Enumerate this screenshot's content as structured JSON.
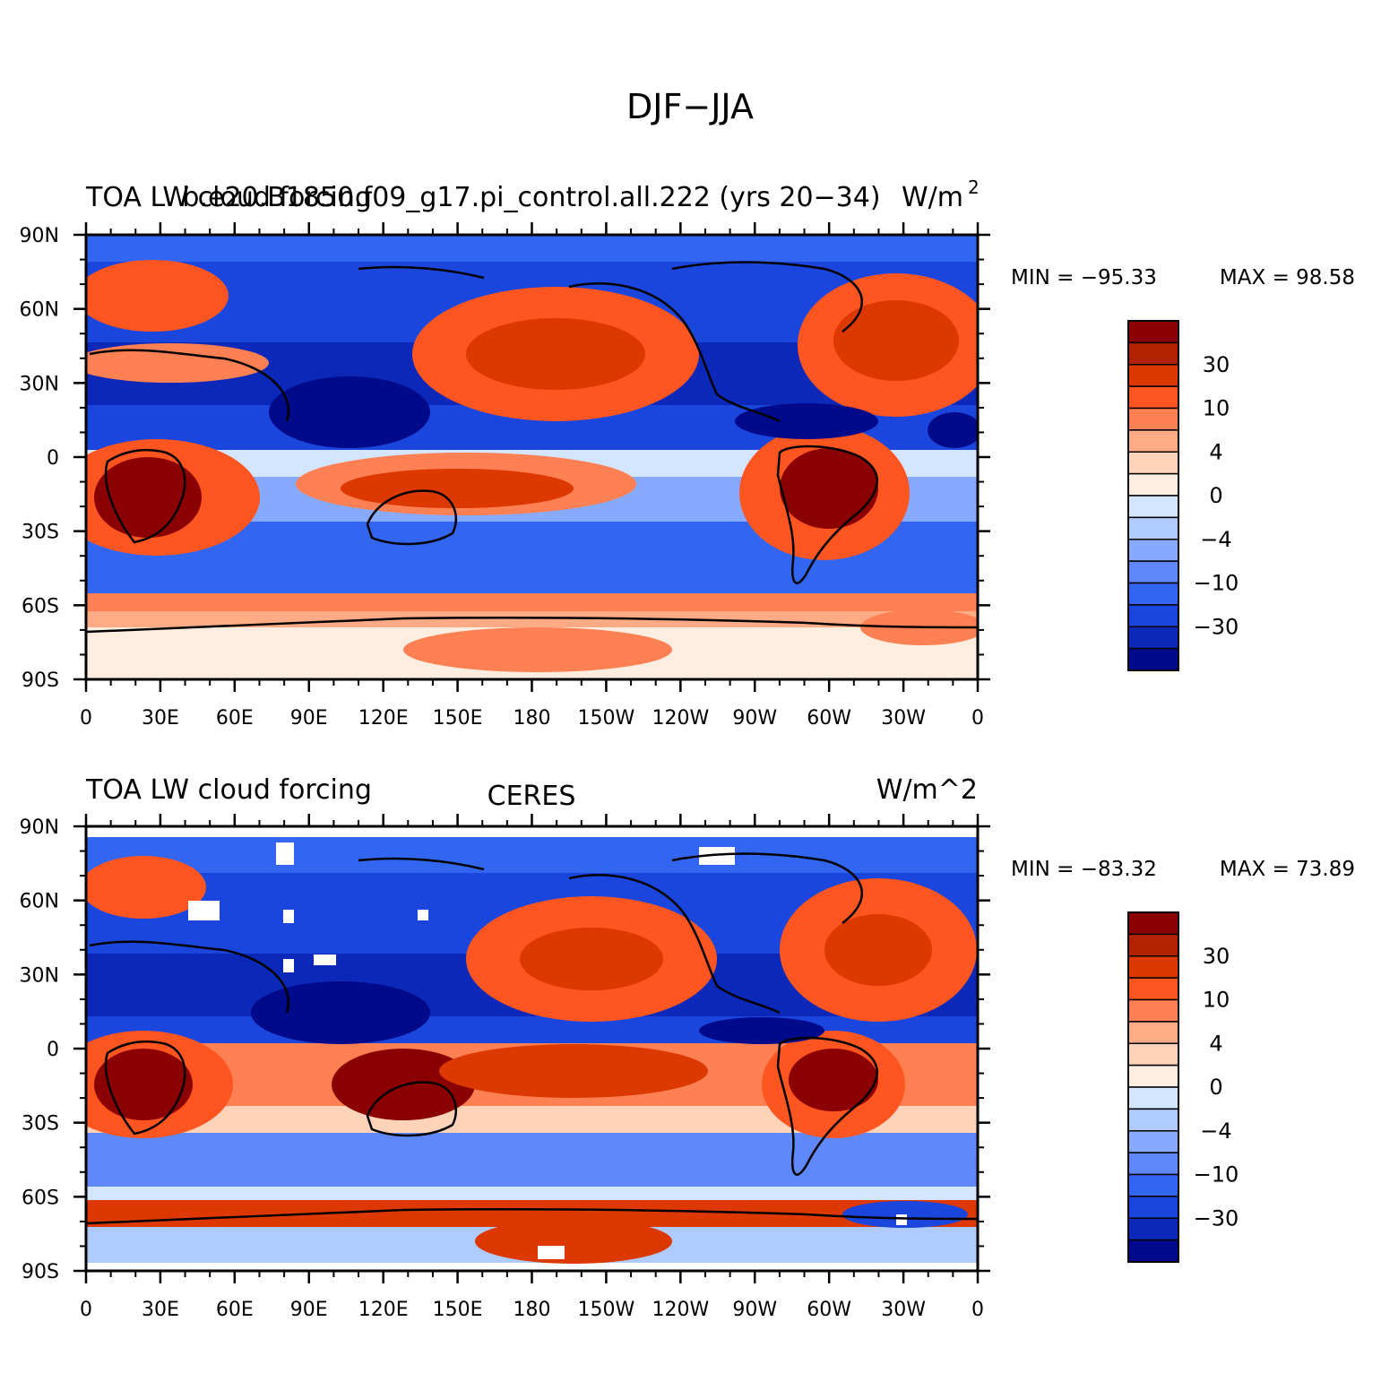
{
  "figure": {
    "title": "DJF−JJA"
  },
  "panels": [
    {
      "left_title": "TOA LW cloud forcing",
      "center_title": "b.e20.B1850.f09_g17.pi_control.all.222 (yrs 20−34)",
      "units": "W/m",
      "units_sup": "2",
      "min_label": "MIN = −95.33",
      "max_label": "MAX =  98.58"
    },
    {
      "left_title": "TOA LW cloud forcing",
      "center_title": "CERES",
      "units": "W/m^2",
      "units_sup": "",
      "min_label": "MIN = −83.32",
      "max_label": "MAX =  73.89"
    }
  ],
  "axes": {
    "lat_labels": [
      "90N",
      "60N",
      "30N",
      "0",
      "30S",
      "60S",
      "90S"
    ],
    "lon_labels": [
      "0",
      "30E",
      "60E",
      "90E",
      "120E",
      "150E",
      "180",
      "150W",
      "120W",
      "90W",
      "60W",
      "30W",
      "0"
    ]
  },
  "colorbar": {
    "colors": [
      "#8b0000",
      "#b22200",
      "#dc3800",
      "#ff5520",
      "#ff8052",
      "#ffab85",
      "#ffd2ba",
      "#ffeddf",
      "#d4e6ff",
      "#b0cbff",
      "#87aaff",
      "#5f88fa",
      "#3366f0",
      "#1b46de",
      "#0b28b8",
      "#000a8a"
    ],
    "labels": [
      "30",
      "10",
      "4",
      "0",
      "−4",
      "−10",
      "−30"
    ]
  }
}
